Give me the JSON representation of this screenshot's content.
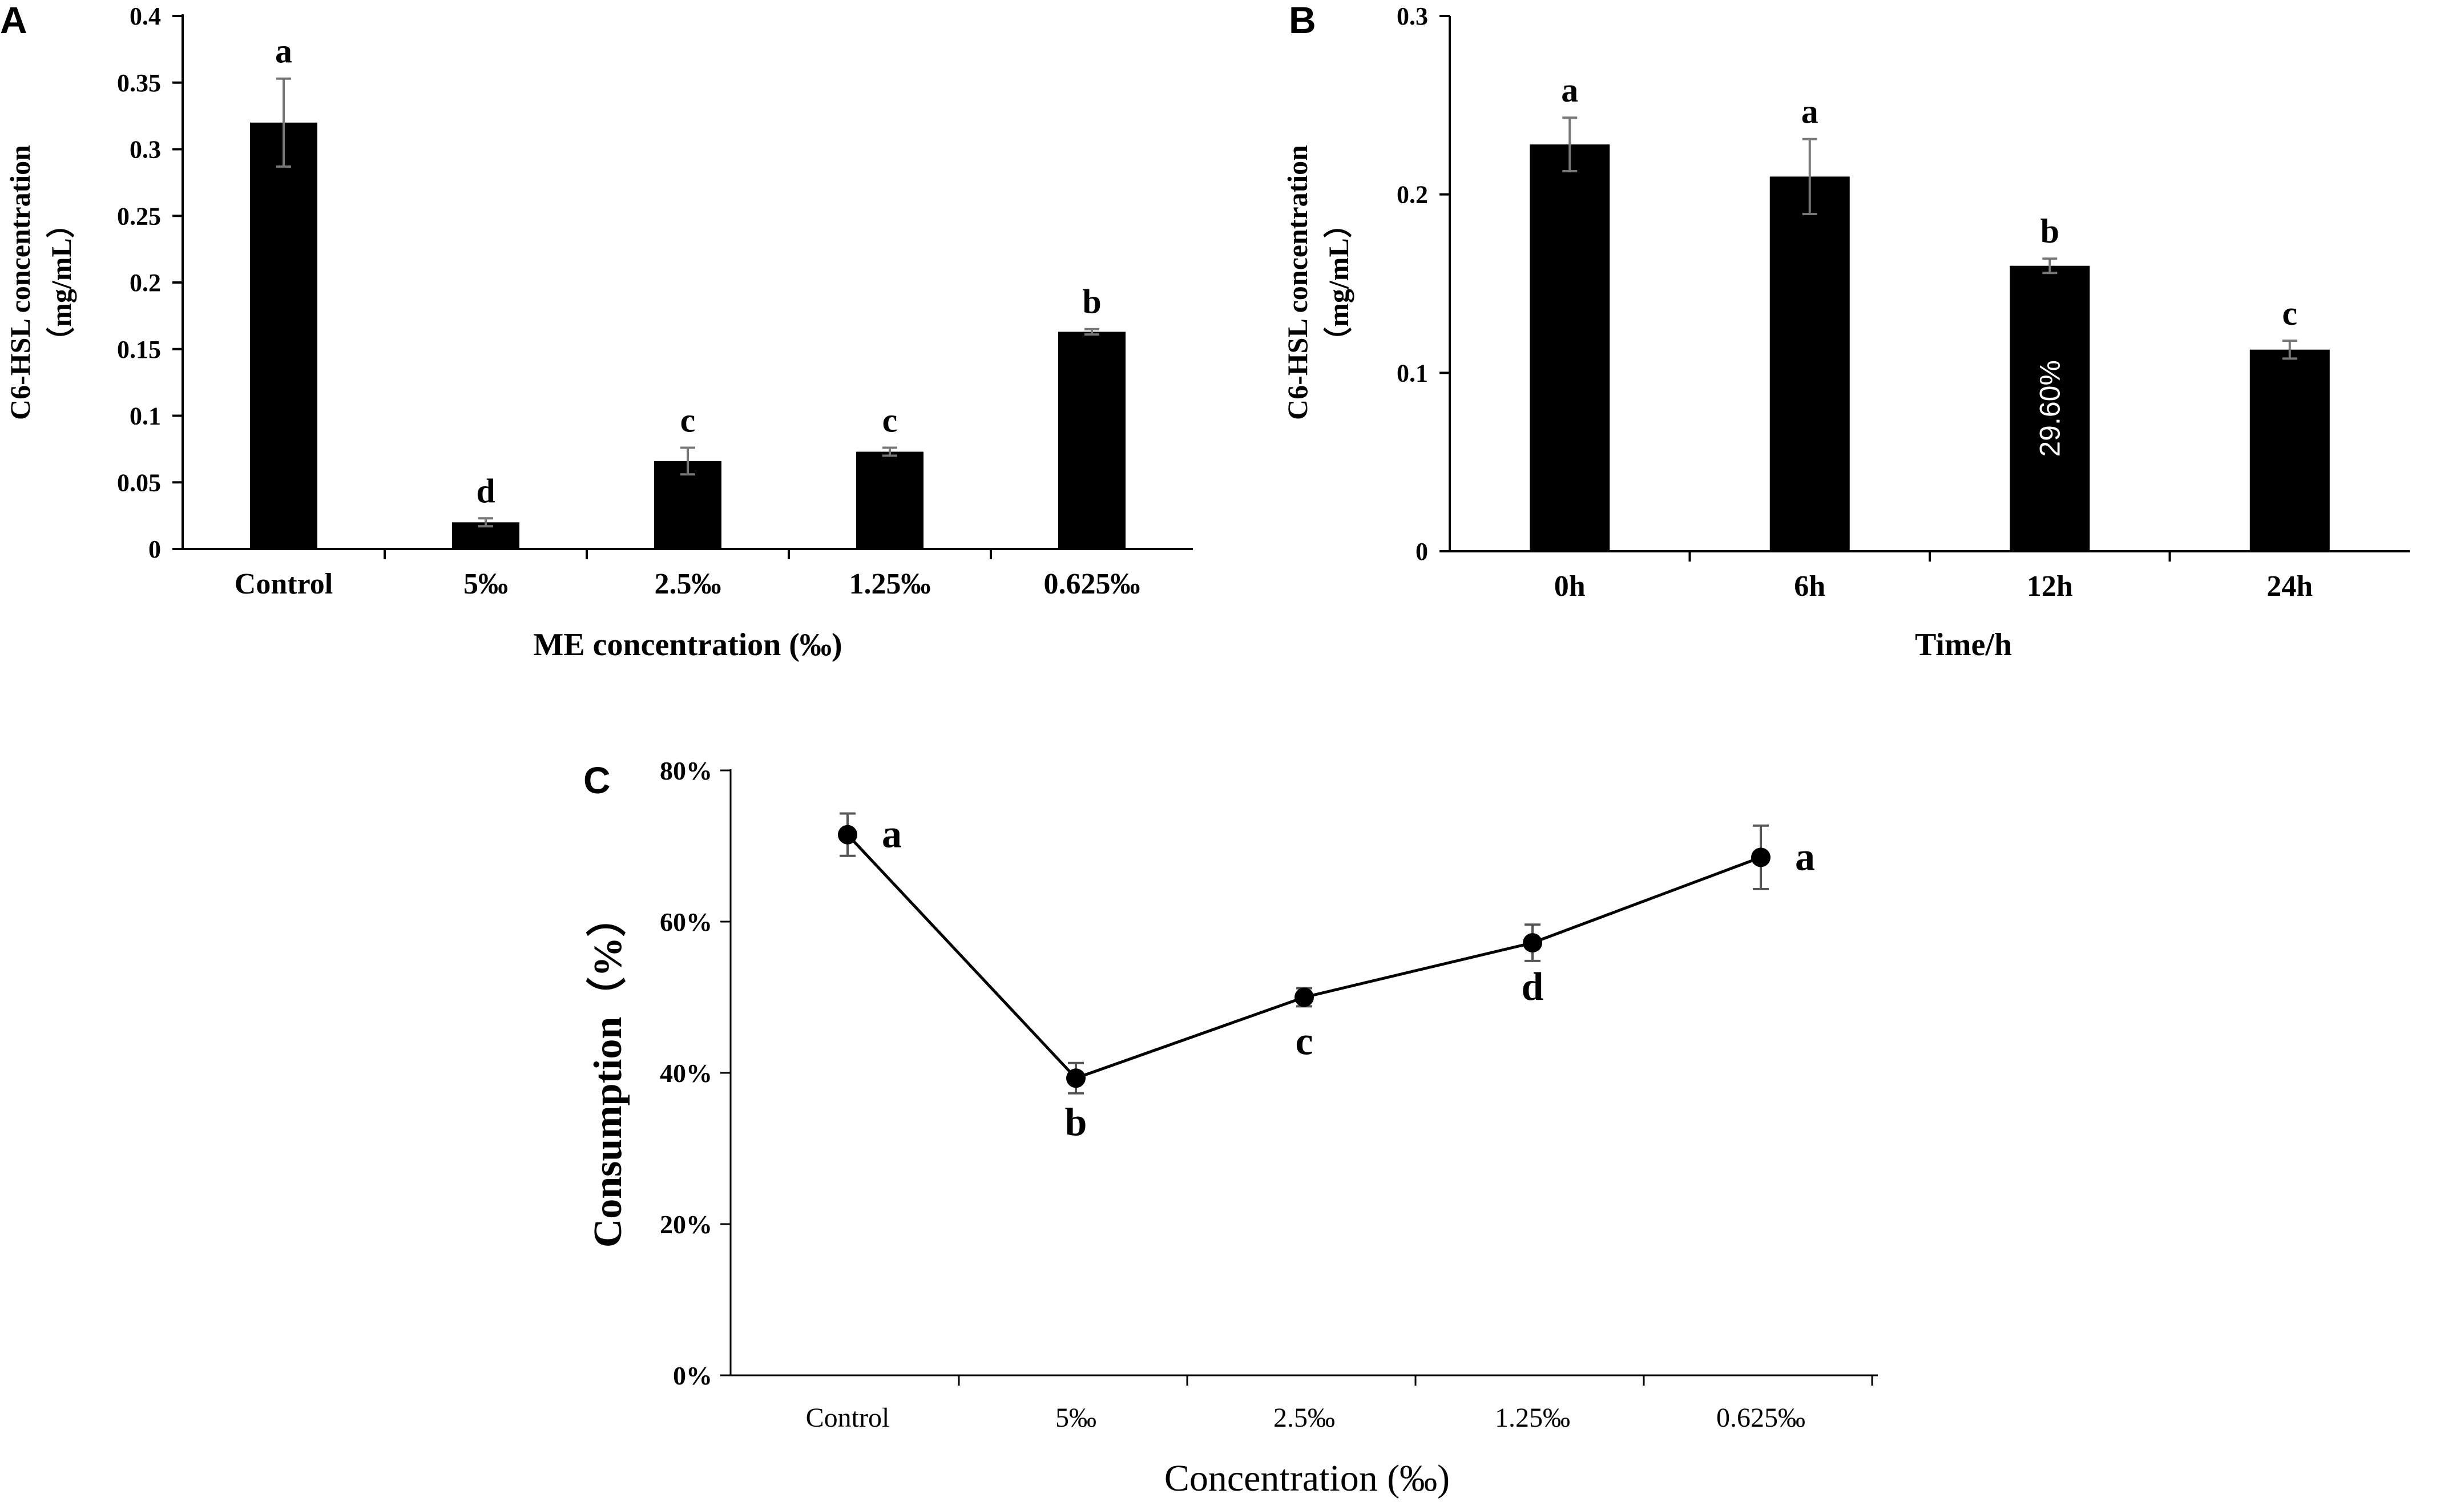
{
  "chart_data": [
    {
      "panel": "A",
      "type": "bar",
      "categories": [
        "Control",
        "5‰",
        "2.5‰",
        "1.25‰",
        "0.625‰"
      ],
      "values": [
        0.32,
        0.02,
        0.066,
        0.073,
        0.163
      ],
      "errors": [
        0.033,
        0.003,
        0.01,
        0.003,
        0.002
      ],
      "letters": [
        "a",
        "d",
        "c",
        "c",
        "b"
      ],
      "xlabel": "ME concentration (‰)",
      "ylabel": "C6-HSL concentration",
      "ylabel_unit": "（mg/mL）",
      "ylim": [
        0,
        0.4
      ],
      "yticks": [
        "0",
        "0.05",
        "0.1",
        "0.15",
        "0.2",
        "0.25",
        "0.3",
        "0.35",
        "0.4"
      ],
      "bar_color": "#000000"
    },
    {
      "panel": "B",
      "type": "bar",
      "categories": [
        "0h",
        "6h",
        "12h",
        "24h"
      ],
      "values": [
        0.228,
        0.21,
        0.16,
        0.113
      ],
      "errors": [
        0.015,
        0.021,
        0.004,
        0.005
      ],
      "letters": [
        "a",
        "a",
        "b",
        "c"
      ],
      "bar_annotation": {
        "category": "12h",
        "text": "29.60%"
      },
      "xlabel": "Time/h",
      "ylabel": "C6-HSL concentration",
      "ylabel_unit": "（mg/mL）",
      "ylim": [
        0,
        0.3
      ],
      "yticks": [
        "0",
        "0.1",
        "0.2",
        "0.3"
      ],
      "bar_color": "#000000"
    },
    {
      "panel": "C",
      "type": "line",
      "categories": [
        "Control",
        "5‰",
        "2.5‰",
        "1.25‰",
        "0.625‰"
      ],
      "values": [
        71.5,
        39.3,
        50,
        57.2,
        68.5
      ],
      "errors": [
        2.8,
        2.0,
        1.2,
        2.4,
        4.2
      ],
      "letters": [
        "a",
        "b",
        "c",
        "d",
        "a"
      ],
      "xlabel": "Concentration (‰)",
      "ylabel": "Consumption（%）",
      "ylim": [
        0,
        80
      ],
      "yticks": [
        "0%",
        "20%",
        "40%",
        "60%",
        "80%"
      ],
      "line_color": "#000000"
    }
  ]
}
